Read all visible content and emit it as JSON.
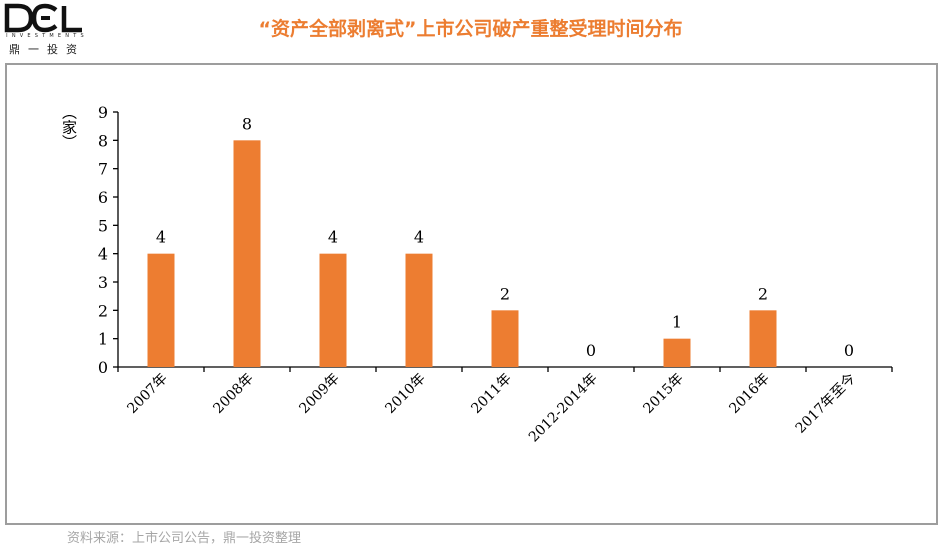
{
  "logo": {
    "mark": "DCL",
    "subtitle": "INVESTMENTS",
    "name_cn": "鼎一投资"
  },
  "title": "“资产全部剥离式”上市公司破产重整受理时间分布",
  "source": "资料来源：上市公司公告，鼎一投资整理",
  "colors": {
    "bar": "#ed7d31",
    "title": "#ec7d31",
    "panel_border": "#9d9d9d",
    "source_text": "#a6a6a6"
  },
  "chart_data": {
    "type": "bar",
    "title": "",
    "ylabel": "（家）",
    "xlabel": "",
    "ylim": [
      0,
      9
    ],
    "yticks": [
      0,
      1,
      2,
      3,
      4,
      5,
      6,
      7,
      8,
      9
    ],
    "grid": false,
    "data_labels": true,
    "categories": [
      "2007年",
      "2008年",
      "2009年",
      "2010年",
      "2011年",
      "2012-2014年",
      "2015年",
      "2016年",
      "2017年至今"
    ],
    "values": [
      4,
      8,
      4,
      4,
      2,
      0,
      1,
      2,
      0
    ]
  }
}
